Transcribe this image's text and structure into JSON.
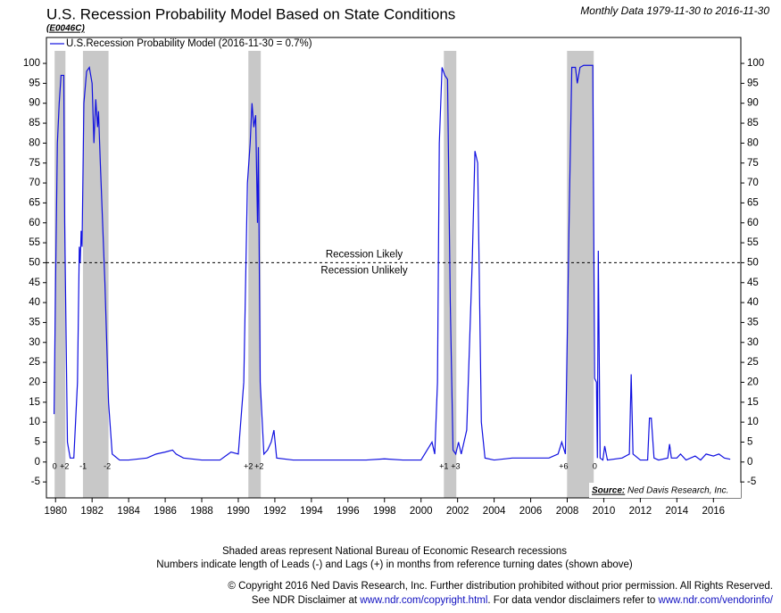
{
  "chart_data": {
    "type": "line",
    "title": "U.S. Recession Probability Model Based on State Conditions",
    "code": "(E0046C)",
    "subtitle": "Monthly Data 1979-11-30 to 2016-11-30",
    "xlim": [
      1979.5,
      2017.5
    ],
    "xticks": [
      1980,
      1982,
      1984,
      1986,
      1988,
      1990,
      1992,
      1994,
      1996,
      1998,
      2000,
      2002,
      2004,
      2006,
      2008,
      2010,
      2012,
      2014,
      2016
    ],
    "ylim": [
      -9,
      106.5
    ],
    "yticks": [
      -5,
      0,
      5,
      10,
      15,
      20,
      25,
      30,
      35,
      40,
      45,
      50,
      55,
      60,
      65,
      70,
      75,
      80,
      85,
      90,
      95,
      100
    ],
    "y2lim": [
      -9,
      106.5
    ],
    "y2ticks": [
      -5,
      0,
      5,
      10,
      15,
      20,
      25,
      30,
      35,
      40,
      45,
      50,
      55,
      60,
      65,
      70,
      75,
      80,
      85,
      90,
      95,
      100
    ],
    "x": [
      1979.92,
      1980.0,
      1980.1,
      1980.2,
      1980.3,
      1980.45,
      1980.5,
      1980.65,
      1980.8,
      1981.0,
      1981.2,
      1981.3,
      1981.35,
      1981.4,
      1981.45,
      1981.55,
      1981.7,
      1981.85,
      1982.0,
      1982.1,
      1982.2,
      1982.3,
      1982.35,
      1982.45,
      1982.7,
      1982.9,
      1983.1,
      1983.5,
      1984,
      1985,
      1985.5,
      1986,
      1986.4,
      1986.6,
      1987,
      1988,
      1989,
      1989.6,
      1990,
      1990.3,
      1990.5,
      1990.65,
      1990.75,
      1990.85,
      1990.95,
      1991.05,
      1991.1,
      1991.2,
      1991.4,
      1991.6,
      1991.8,
      1991.95,
      1992.1,
      1993,
      1995,
      1997,
      1998,
      1999,
      2000,
      2000.6,
      2000.75,
      2000.9,
      2001.0,
      2001.15,
      2001.3,
      2001.45,
      2001.6,
      2001.75,
      2001.9,
      2002.05,
      2002.2,
      2002.5,
      2002.8,
      2002.95,
      2003.1,
      2003.3,
      2003.5,
      2004,
      2005,
      2006,
      2007,
      2007.5,
      2007.7,
      2007.9,
      2008.1,
      2008.25,
      2008.45,
      2008.55,
      2008.7,
      2008.9,
      2009.4,
      2009.5,
      2009.6,
      2009.65,
      2009.7,
      2009.8,
      2009.95,
      2010.05,
      2010.2,
      2011,
      2011.4,
      2011.5,
      2011.6,
      2012,
      2012.4,
      2012.5,
      2012.6,
      2012.75,
      2013,
      2013.5,
      2013.6,
      2013.7,
      2014,
      2014.2,
      2014.5,
      2015,
      2015.3,
      2015.6,
      2016,
      2016.3,
      2016.6,
      2016.92
    ],
    "series": [
      {
        "name": "U.S.Recession Probability Model (2016-11-30 = 0.7%)",
        "color": "#1010e0",
        "values": [
          12,
          45,
          80,
          90,
          97,
          97,
          60,
          5,
          1,
          1,
          20,
          54,
          50,
          58,
          54,
          90,
          98,
          99,
          95,
          80,
          91,
          84,
          88,
          75,
          45,
          15,
          2,
          0.5,
          0.5,
          1,
          2,
          2.5,
          3,
          2,
          1,
          0.5,
          0.5,
          2.5,
          2,
          20,
          70,
          80,
          90,
          84,
          87,
          60,
          79,
          20,
          2,
          3,
          5,
          8,
          1,
          0.5,
          0.5,
          0.5,
          0.8,
          0.5,
          0.5,
          5,
          2,
          20,
          80,
          99,
          97,
          96,
          40,
          3,
          2,
          5,
          2,
          8,
          50,
          78,
          75,
          10,
          1,
          0.5,
          1,
          1,
          1,
          2,
          5,
          2,
          60,
          99,
          99,
          95,
          99,
          99.5,
          99.5,
          21,
          20,
          1,
          53,
          1,
          0.5,
          4,
          0.5,
          1,
          2,
          22,
          2,
          0.5,
          0.5,
          11,
          11,
          1,
          0.5,
          1,
          4.5,
          1,
          1,
          2,
          0.5,
          1.5,
          0.5,
          2,
          1.5,
          2,
          1,
          0.7
        ]
      }
    ],
    "reference": {
      "value": 50,
      "label_above": "Recession Likely",
      "label_below": "Recession Unlikely"
    },
    "recessions": [
      {
        "start": 1979.95,
        "end": 1980.54
      },
      {
        "start": 1981.5,
        "end": 1982.9
      },
      {
        "start": 1990.55,
        "end": 1991.23
      },
      {
        "start": 2001.25,
        "end": 2001.93
      },
      {
        "start": 2007.99,
        "end": 2009.45
      }
    ],
    "annotations": [
      {
        "x": 1979.95,
        "label": "0"
      },
      {
        "x": 1980.49,
        "label": "+2"
      },
      {
        "x": 1981.51,
        "label": "-1"
      },
      {
        "x": 1982.83,
        "label": "-2"
      },
      {
        "x": 1990.55,
        "label": "+2"
      },
      {
        "x": 1991.14,
        "label": "+2"
      },
      {
        "x": 2001.25,
        "label": "+1"
      },
      {
        "x": 2001.89,
        "label": "+3"
      },
      {
        "x": 2007.8,
        "label": "+6"
      },
      {
        "x": 2009.51,
        "label": "0"
      }
    ],
    "source_label": "Source:",
    "source": "Ned Davis Research, Inc.",
    "notes": [
      "Shaded areas represent National Bureau of Economic Research recessions",
      "Numbers indicate length of Leads (-) and Lags (+) in months from reference turning dates (shown above)"
    ],
    "copyright": "© Copyright 2016 Ned Davis Research, Inc. Further distribution prohibited without prior permission. All Rights Reserved.",
    "disclaimer": [
      "See NDR Disclaimer at ",
      "www.ndr.com/copyright.html",
      ". For data vendor disclaimers refer to ",
      "www.ndr.com/vendorinfo/"
    ]
  }
}
